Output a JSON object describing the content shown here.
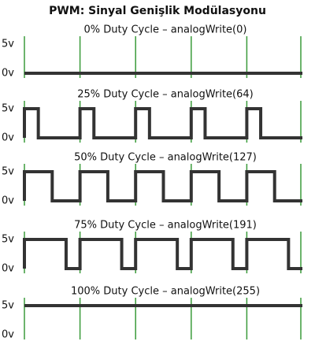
{
  "title": "PWM: Sinyal Genişlik Modülasyonu",
  "panels": [
    {
      "label": "0% Duty Cycle – analogWrite(0)",
      "high": "5v",
      "low": "0v"
    },
    {
      "label": "25% Duty Cycle – analogWrite(64)",
      "high": "5v",
      "low": "0v"
    },
    {
      "label": "50% Duty Cycle – analogWrite(127)",
      "high": "5v",
      "low": "0v"
    },
    {
      "label": "75% Duty Cycle – analogWrite(191)",
      "high": "5v",
      "low": "0v"
    },
    {
      "label": "100% Duty Cycle – analogWrite(255)",
      "high": "5v",
      "low": "0v"
    }
  ]
}
